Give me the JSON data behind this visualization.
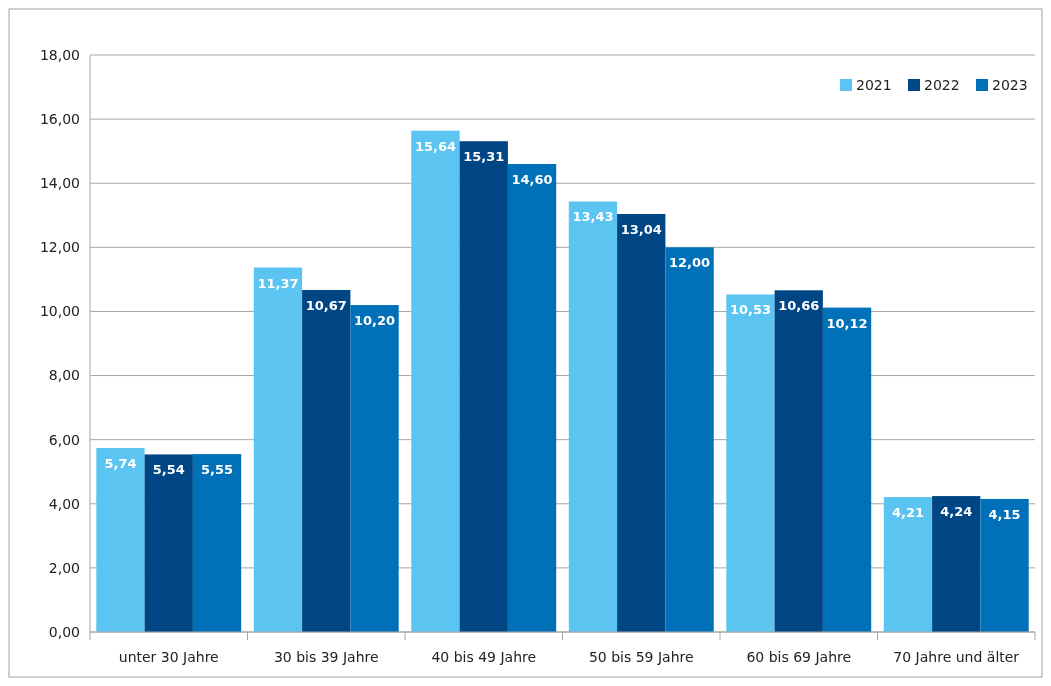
{
  "chart_data": {
    "type": "bar",
    "categories": [
      "unter 30 Jahre",
      "30 bis 39 Jahre",
      "40 bis 49 Jahre",
      "50 bis 59 Jahre",
      "60 bis 69 Jahre",
      "70 Jahre und älter"
    ],
    "series": [
      {
        "name": "2021",
        "color": "#5bc4f1",
        "values": [
          5.74,
          11.37,
          15.64,
          13.43,
          10.53,
          4.21
        ],
        "value_labels": [
          "5,74",
          "11,37",
          "15,64",
          "13,43",
          "10,53",
          "4,21"
        ]
      },
      {
        "name": "2022",
        "color": "#004684",
        "values": [
          5.54,
          10.67,
          15.31,
          13.04,
          10.66,
          4.24
        ],
        "value_labels": [
          "5,54",
          "10,67",
          "15,31",
          "13,04",
          "10,66",
          "4,24"
        ]
      },
      {
        "name": "2023",
        "color": "#0070b8",
        "values": [
          5.55,
          10.2,
          14.6,
          12.0,
          10.12,
          4.15
        ],
        "value_labels": [
          "5,55",
          "10,20",
          "14,60",
          "12,00",
          "10,12",
          "4,15"
        ]
      }
    ],
    "ylim": [
      0,
      18
    ],
    "yticks": [
      {
        "value": 0,
        "label": "0,00"
      },
      {
        "value": 2,
        "label": "2,00"
      },
      {
        "value": 4,
        "label": "4,00"
      },
      {
        "value": 6,
        "label": "6,00"
      },
      {
        "value": 8,
        "label": "8,00"
      },
      {
        "value": 10,
        "label": "10,00"
      },
      {
        "value": 12,
        "label": "12,00"
      },
      {
        "value": 14,
        "label": "14,00"
      },
      {
        "value": 16,
        "label": "16,00"
      },
      {
        "value": 18,
        "label": "18,00"
      }
    ],
    "grid": "y",
    "legend": "top right"
  }
}
